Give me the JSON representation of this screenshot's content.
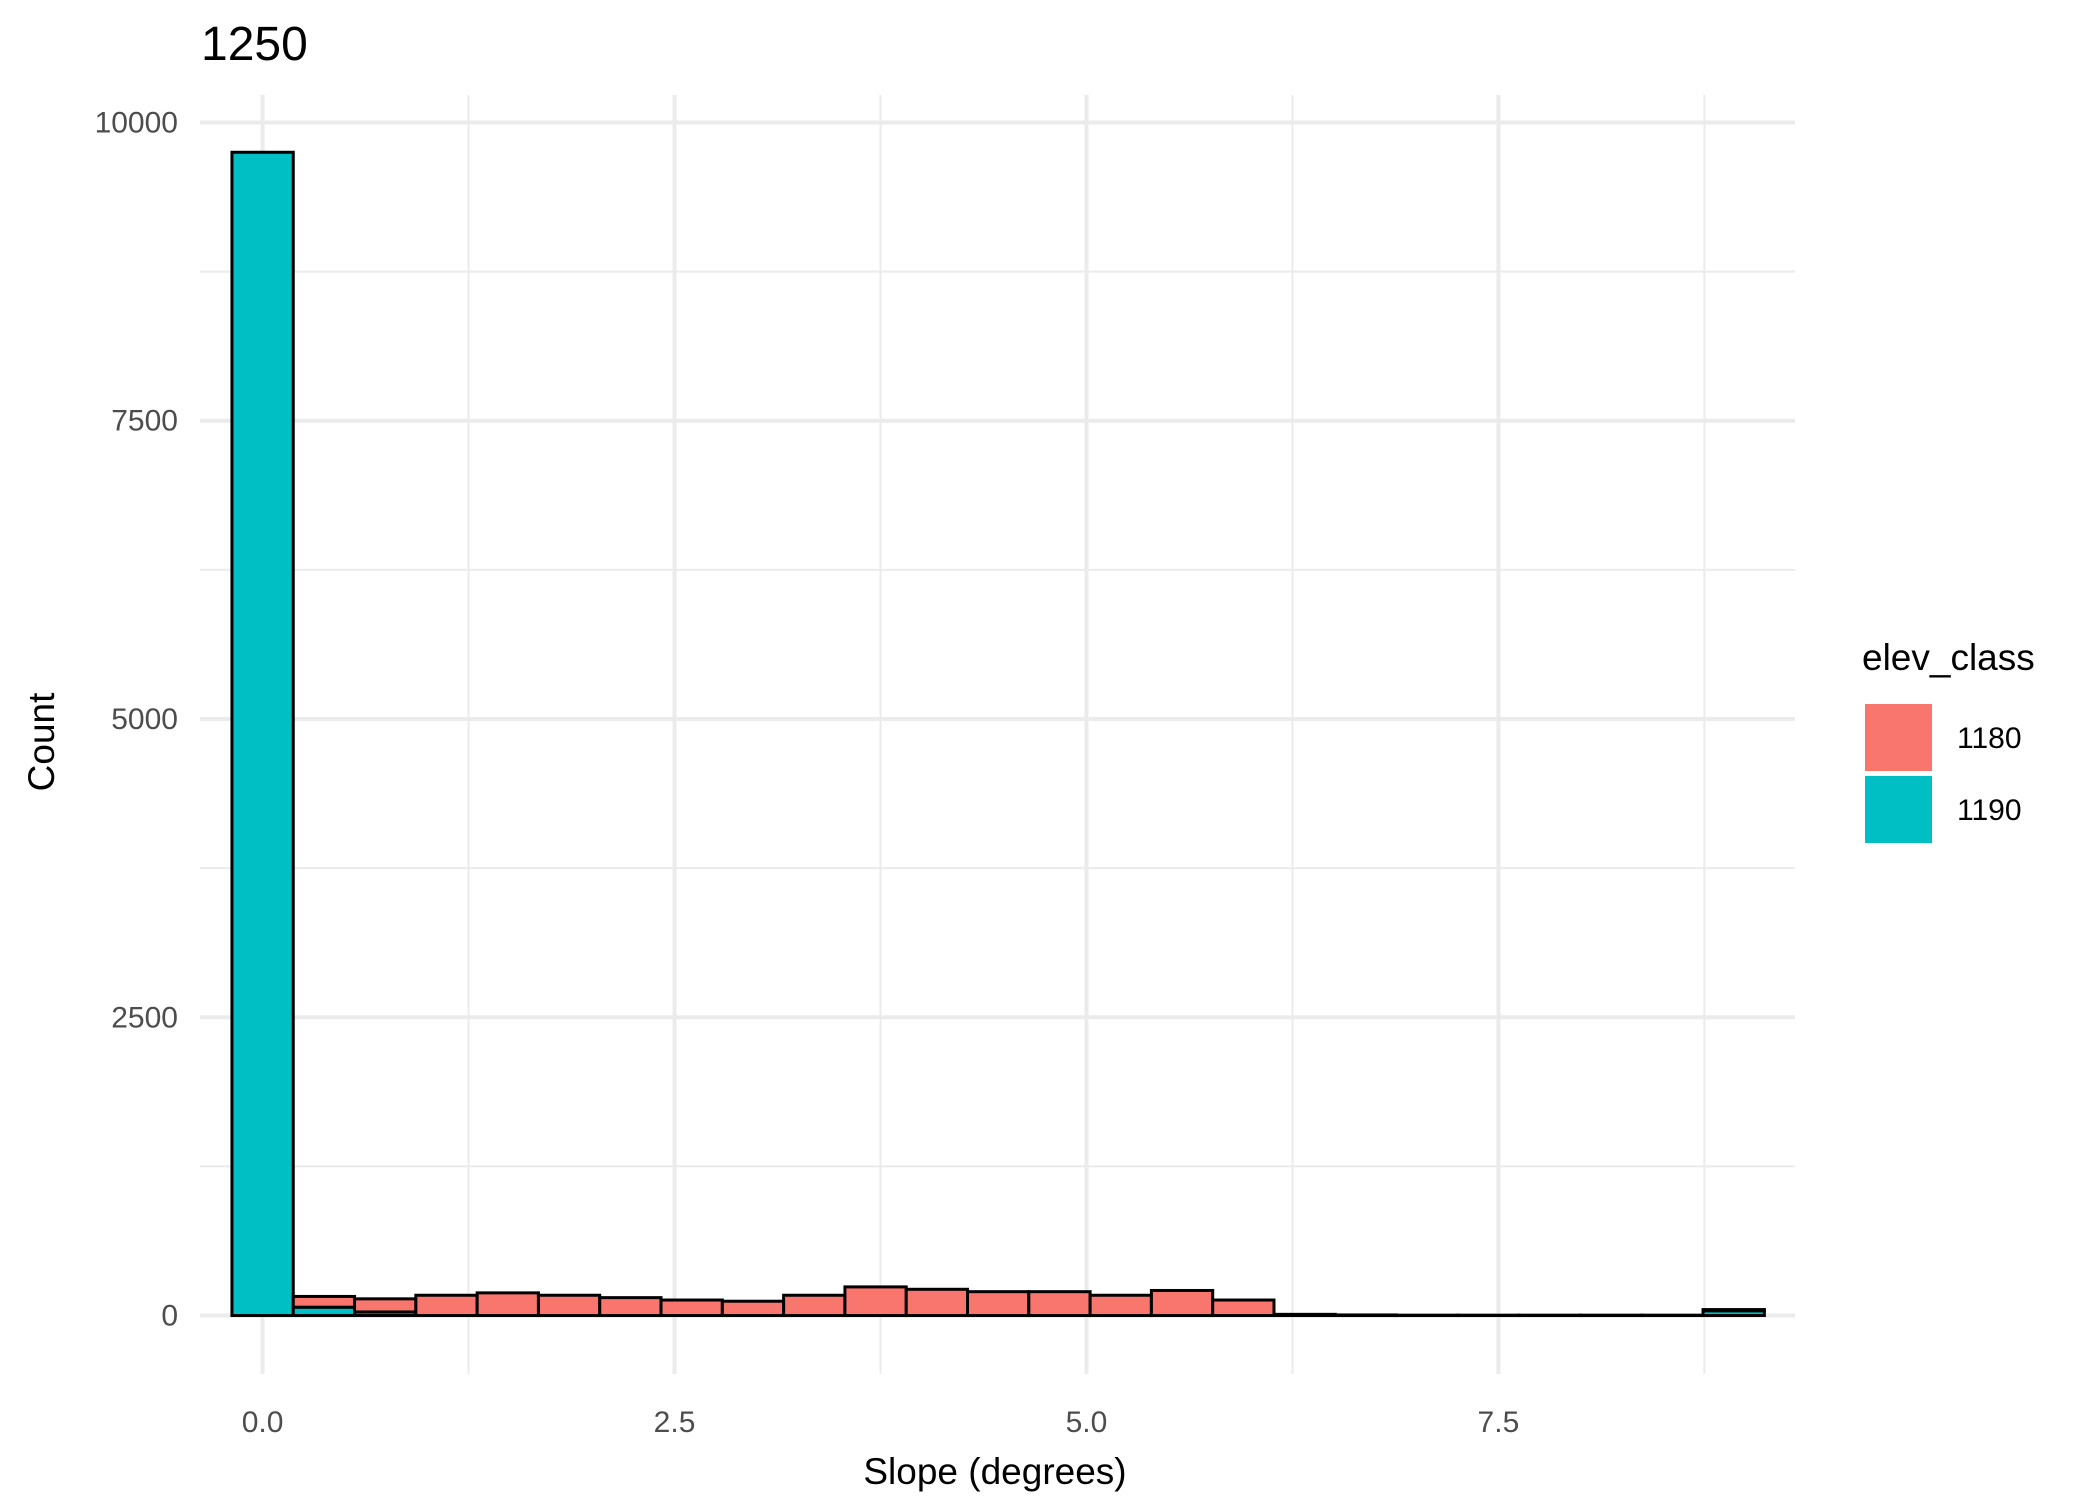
{
  "chart_data": {
    "type": "bar",
    "title": "1250",
    "xlabel": "Slope (degrees)",
    "ylabel": "Count",
    "xlim": [
      -0.38,
      9.3
    ],
    "ylim": [
      -490,
      10230
    ],
    "x_ticks": [
      "0.0",
      "2.5",
      "5.0",
      "7.5"
    ],
    "x_tick_values": [
      0,
      2.5,
      5,
      7.5
    ],
    "y_ticks": [
      "0",
      "2500",
      "5000",
      "7500",
      "10000"
    ],
    "y_tick_values": [
      0,
      2500,
      5000,
      7500,
      10000
    ],
    "grid": true,
    "stacked": true,
    "bin_width": 0.372,
    "bin_centers": [
      0.0,
      0.372,
      0.744,
      1.116,
      1.488,
      1.86,
      2.232,
      2.604,
      2.976,
      3.348,
      3.72,
      4.092,
      4.464,
      4.836,
      5.208,
      5.58,
      5.952,
      6.324,
      6.696,
      7.068,
      7.44,
      7.812,
      8.184,
      8.556,
      8.928
    ],
    "legend": {
      "title": "elev_class",
      "position": "right"
    },
    "series": [
      {
        "name": "1180",
        "color": "#F8766D",
        "values": [
          0,
          90,
          110,
          170,
          190,
          170,
          150,
          130,
          120,
          170,
          240,
          220,
          200,
          200,
          170,
          210,
          130,
          10,
          5,
          3,
          3,
          3,
          3,
          3,
          10
        ]
      },
      {
        "name": "1190",
        "color": "#00BFC4",
        "values": [
          9750,
          70,
          30,
          0,
          0,
          0,
          0,
          0,
          0,
          0,
          0,
          0,
          0,
          0,
          0,
          0,
          0,
          0,
          0,
          0,
          0,
          0,
          0,
          0,
          40
        ]
      }
    ]
  }
}
